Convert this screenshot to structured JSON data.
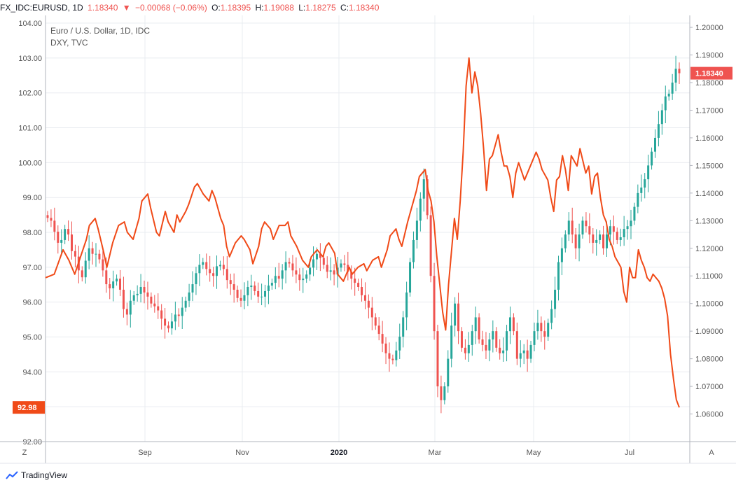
{
  "header": {
    "symbol": "FX_IDC:EURUSD, 1D",
    "last": "1.18340",
    "arrow": "▼",
    "change": "−0.00068 (−0.06%)",
    "o_label": "O:",
    "o_value": "1.18395",
    "h_label": "H:",
    "h_value": "1.19088",
    "l_label": "L:",
    "l_value": "1.18275",
    "c_label": "C:",
    "c_value": "1.18340"
  },
  "legend": {
    "line1": "Euro / U.S. Dollar, 1D, IDC",
    "line2": "DXY, TVC"
  },
  "badges": {
    "right_value": "1.18340",
    "left_value": "92.98"
  },
  "buttons": {
    "left": "Z",
    "right": "A"
  },
  "branding": "TradingView",
  "colors": {
    "up": "#26a69a",
    "down": "#ef5350",
    "dxy_line": "#f04a18",
    "grid": "#e9ecf0",
    "axis_text": "#555555"
  },
  "chart_data": {
    "type": "line",
    "left_axis": {
      "ticks": [
        "104.00",
        "103.00",
        "102.00",
        "101.00",
        "100.00",
        "99.00",
        "98.00",
        "97.00",
        "96.00",
        "95.00",
        "94.00",
        "93.00",
        "92.00"
      ],
      "ylim": [
        92.0,
        104.0
      ]
    },
    "right_axis": {
      "ticks": [
        "1.20000",
        "1.19000",
        "1.18000",
        "1.17000",
        "1.16000",
        "1.15000",
        "1.14000",
        "1.13000",
        "1.12000",
        "1.11000",
        "1.10000",
        "1.09000",
        "1.08000",
        "1.07000",
        "1.06000"
      ],
      "ylim": [
        1.05,
        1.205
      ]
    },
    "x_ticks": [
      "Sep",
      "Nov",
      "2020",
      "Mar",
      "May",
      "Jul"
    ],
    "series": [
      {
        "name": "DXY, TVC",
        "axis": "left",
        "style": "line",
        "values": [
          [
            0,
            96.7
          ],
          [
            3,
            96.8
          ],
          [
            6,
            97.5
          ],
          [
            8,
            97.2
          ],
          [
            10,
            96.8
          ],
          [
            12,
            97.3
          ],
          [
            14,
            97.8
          ],
          [
            15,
            98.2
          ],
          [
            17,
            98.4
          ],
          [
            18,
            98.1
          ],
          [
            20,
            97.4
          ],
          [
            21,
            97.0
          ],
          [
            23,
            97.7
          ],
          [
            25,
            98.2
          ],
          [
            27,
            98.3
          ],
          [
            28,
            98.0
          ],
          [
            30,
            97.8
          ],
          [
            32,
            98.4
          ],
          [
            33,
            98.9
          ],
          [
            35,
            99.1
          ],
          [
            36,
            98.7
          ],
          [
            38,
            98.0
          ],
          [
            39,
            97.9
          ],
          [
            41,
            98.6
          ],
          [
            42,
            98.3
          ],
          [
            44,
            98.0
          ],
          [
            45,
            98.5
          ],
          [
            46,
            98.3
          ],
          [
            48,
            98.6
          ],
          [
            49,
            98.8
          ],
          [
            51,
            99.3
          ],
          [
            52,
            99.4
          ],
          [
            54,
            99.1
          ],
          [
            56,
            98.9
          ],
          [
            57,
            99.2
          ],
          [
            58,
            99.0
          ],
          [
            60,
            98.4
          ],
          [
            61,
            98.2
          ],
          [
            62,
            97.6
          ],
          [
            63,
            97.3
          ],
          [
            65,
            97.7
          ],
          [
            67,
            97.9
          ],
          [
            68,
            97.8
          ],
          [
            70,
            97.5
          ],
          [
            71,
            97.1
          ],
          [
            73,
            97.6
          ],
          [
            74,
            98.1
          ],
          [
            75,
            98.3
          ],
          [
            77,
            98.1
          ],
          [
            78,
            97.8
          ],
          [
            80,
            98.2
          ],
          [
            82,
            98.2
          ],
          [
            83,
            98.3
          ],
          [
            84,
            97.9
          ],
          [
            86,
            97.6
          ],
          [
            87,
            97.4
          ],
          [
            88,
            97.2
          ],
          [
            90,
            97.0
          ],
          [
            91,
            97.3
          ],
          [
            93,
            97.5
          ],
          [
            95,
            97.3
          ],
          [
            96,
            97.6
          ],
          [
            97,
            97.7
          ],
          [
            99,
            97.4
          ],
          [
            100,
            96.8
          ],
          [
            102,
            96.6
          ],
          [
            104,
            97.0
          ],
          [
            105,
            96.8
          ],
          [
            107,
            97.0
          ],
          [
            109,
            97.1
          ],
          [
            110,
            96.9
          ],
          [
            112,
            97.2
          ],
          [
            114,
            97.3
          ],
          [
            115,
            97.0
          ],
          [
            117,
            97.5
          ],
          [
            118,
            97.9
          ],
          [
            120,
            98.1
          ],
          [
            121,
            97.8
          ],
          [
            122,
            97.6
          ],
          [
            124,
            98.3
          ],
          [
            125,
            98.6
          ],
          [
            127,
            99.2
          ],
          [
            128,
            99.6
          ],
          [
            130,
            99.8
          ],
          [
            131,
            99.2
          ],
          [
            132,
            98.9
          ],
          [
            133,
            98.3
          ],
          [
            134,
            97.3
          ],
          [
            135,
            96.5
          ],
          [
            136,
            95.7
          ],
          [
            137,
            95.2
          ],
          [
            138,
            96.5
          ],
          [
            140,
            98.4
          ],
          [
            141,
            97.8
          ],
          [
            142,
            98.9
          ],
          [
            143,
            100.3
          ],
          [
            144,
            102.2
          ],
          [
            145,
            103.0
          ],
          [
            146,
            102.0
          ],
          [
            147,
            102.6
          ],
          [
            148,
            102.2
          ],
          [
            149,
            101.4
          ],
          [
            150,
            100.4
          ],
          [
            151,
            99.2
          ],
          [
            152,
            100.1
          ],
          [
            153,
            100.2
          ],
          [
            155,
            100.8
          ],
          [
            156,
            100.3
          ],
          [
            157,
            99.9
          ],
          [
            158,
            99.9
          ],
          [
            159,
            99.6
          ],
          [
            160,
            99.0
          ],
          [
            161,
            99.7
          ],
          [
            162,
            100.0
          ],
          [
            164,
            99.5
          ],
          [
            166,
            99.9
          ],
          [
            168,
            100.3
          ],
          [
            169,
            100.1
          ],
          [
            170,
            99.8
          ],
          [
            172,
            99.5
          ],
          [
            173,
            99.0
          ],
          [
            174,
            98.6
          ],
          [
            175,
            99.5
          ],
          [
            176,
            99.6
          ],
          [
            177,
            100.2
          ],
          [
            178,
            99.8
          ],
          [
            179,
            99.2
          ],
          [
            180,
            100.2
          ],
          [
            182,
            99.9
          ],
          [
            183,
            100.4
          ],
          [
            185,
            99.7
          ],
          [
            186,
            99.9
          ],
          [
            187,
            99.1
          ],
          [
            188,
            99.6
          ],
          [
            189,
            99.7
          ],
          [
            190,
            99.0
          ],
          [
            191,
            98.5
          ],
          [
            192,
            98.3
          ],
          [
            193,
            97.8
          ],
          [
            194,
            97.6
          ],
          [
            195,
            97.3
          ],
          [
            197,
            97.0
          ],
          [
            198,
            96.3
          ],
          [
            199,
            96.0
          ],
          [
            200,
            97.0
          ],
          [
            201,
            96.7
          ],
          [
            202,
            96.7
          ],
          [
            203,
            97.5
          ],
          [
            204,
            97.2
          ],
          [
            205,
            97.0
          ],
          [
            206,
            96.7
          ],
          [
            207,
            96.6
          ],
          [
            208,
            96.8
          ],
          [
            209,
            96.7
          ],
          [
            210,
            96.6
          ],
          [
            211,
            96.4
          ],
          [
            212,
            96.1
          ],
          [
            213,
            95.6
          ],
          [
            214,
            94.5
          ],
          [
            215,
            93.8
          ],
          [
            216,
            93.2
          ],
          [
            217,
            92.98
          ]
        ]
      },
      {
        "name": "Euro / U.S. Dollar, 1D, IDC",
        "axis": "right",
        "style": "candles",
        "closes": [
          1.131,
          1.13,
          1.126,
          1.122,
          1.123,
          1.127,
          1.125,
          1.119,
          1.117,
          1.112,
          1.1095,
          1.1155,
          1.12,
          1.118,
          1.118,
          1.116,
          1.112,
          1.107,
          1.1055,
          1.108,
          1.109,
          1.105,
          1.098,
          1.096,
          1.101,
          1.103,
          1.1035,
          1.106,
          1.104,
          1.1025,
          1.1,
          1.099,
          1.0975,
          1.0945,
          1.092,
          1.091,
          1.0935,
          1.096,
          1.0955,
          1.0985,
          1.101,
          1.104,
          1.107,
          1.111,
          1.114,
          1.115,
          1.1125,
          1.111,
          1.11,
          1.1135,
          1.114,
          1.1125,
          1.1085,
          1.107,
          1.105,
          1.102,
          1.101,
          1.103,
          1.106,
          1.1065,
          1.1045,
          1.1025,
          1.1025,
          1.1045,
          1.1065,
          1.1075,
          1.11,
          1.109,
          1.112,
          1.115,
          1.1145,
          1.112,
          1.1105,
          1.1085,
          1.109,
          1.1105,
          1.113,
          1.116,
          1.118,
          1.1165,
          1.114,
          1.1115,
          1.112,
          1.1105,
          1.113,
          1.1145,
          1.114,
          1.1115,
          1.109,
          1.1075,
          1.106,
          1.103,
          1.101,
          1.0985,
          1.095,
          1.092,
          1.089,
          1.0855,
          1.082,
          1.08,
          1.0795,
          1.083,
          1.088,
          1.095,
          1.104,
          1.115,
          1.123,
          1.13,
          1.138,
          1.145,
          1.132,
          1.11,
          1.09,
          1.07,
          1.065,
          1.07,
          1.08,
          1.092,
          1.1,
          1.09,
          1.084,
          1.082,
          1.085,
          1.09,
          1.095,
          1.087,
          1.085,
          1.083,
          1.087,
          1.09,
          1.084,
          1.082,
          1.083,
          1.09,
          1.095,
          1.09,
          1.08,
          1.082,
          1.083,
          1.08,
          1.085,
          1.09,
          1.093,
          1.09,
          1.088,
          1.093,
          1.098,
          1.105,
          1.115,
          1.12,
          1.125,
          1.13,
          1.125,
          1.12,
          1.125,
          1.13,
          1.128,
          1.125,
          1.122,
          1.123,
          1.125,
          1.12,
          1.125,
          1.128,
          1.126,
          1.123,
          1.124,
          1.127,
          1.128,
          1.13,
          1.135,
          1.14,
          1.142,
          1.145,
          1.15,
          1.155,
          1.16,
          1.165,
          1.17,
          1.175,
          1.176,
          1.18,
          1.185,
          1.1834
        ]
      }
    ],
    "grid": true
  }
}
